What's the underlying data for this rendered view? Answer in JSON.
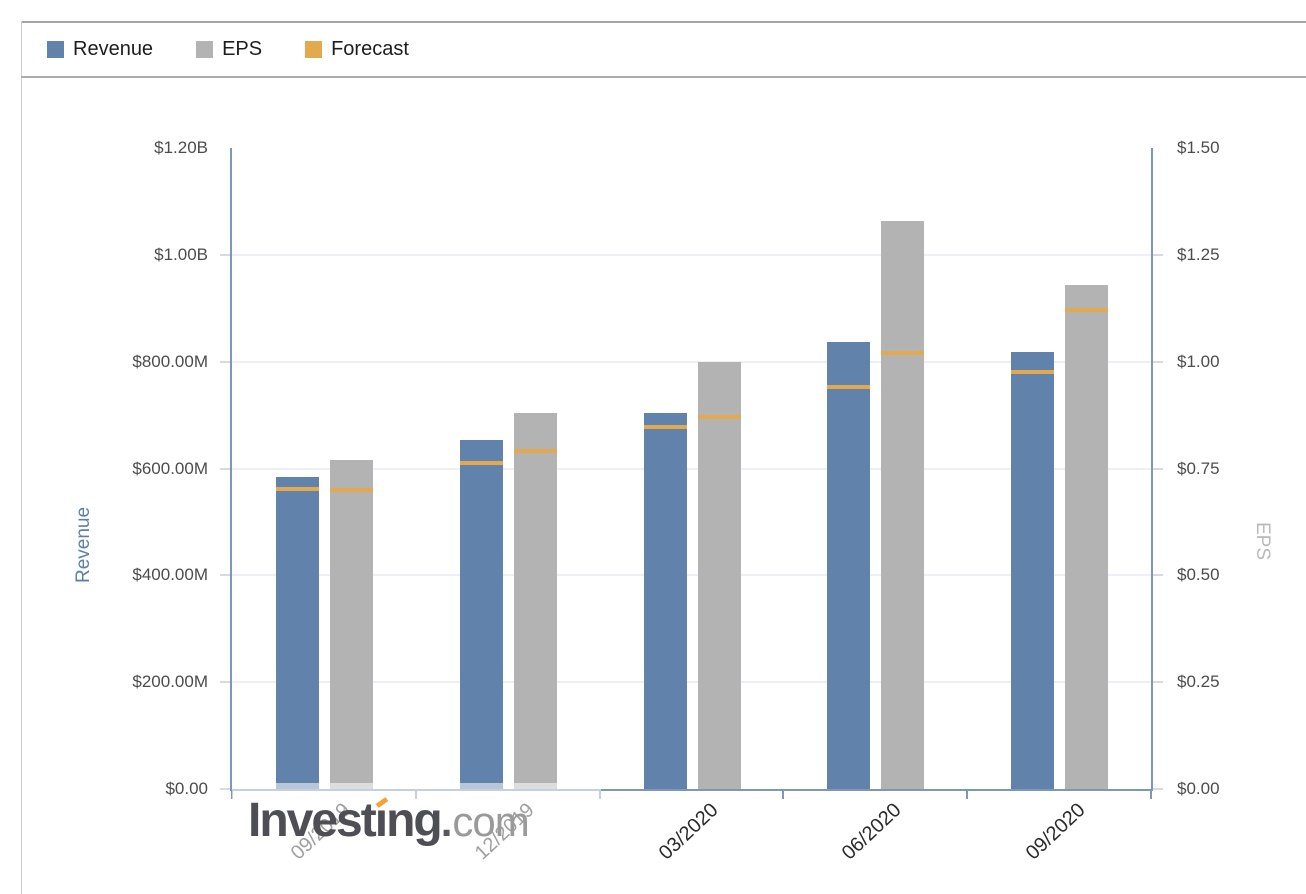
{
  "legend": {
    "items": [
      {
        "label": "Revenue",
        "color": "#6183ab"
      },
      {
        "label": "EPS",
        "color": "#b3b3b3"
      },
      {
        "label": "Forecast",
        "color": "#e3a94e"
      }
    ]
  },
  "chart_data": {
    "type": "bar",
    "title": "",
    "categories": [
      "09/2019",
      "12/2019",
      "03/2020",
      "06/2020",
      "09/2020"
    ],
    "series": [
      {
        "name": "Revenue",
        "axis": "left",
        "color": "#6183ab",
        "values": [
          584000000,
          653000000,
          703000000,
          837000000,
          818000000
        ]
      },
      {
        "name": "EPS",
        "axis": "right",
        "color": "#b3b3b3",
        "values": [
          0.77,
          0.88,
          1.0,
          1.33,
          1.18
        ]
      },
      {
        "name": "Revenue Forecast",
        "axis": "left",
        "color": "#e3a94e",
        "values": [
          561000000,
          610000000,
          678000000,
          753000000,
          781000000
        ]
      },
      {
        "name": "EPS Forecast",
        "axis": "right",
        "color": "#e3a94e",
        "values": [
          0.7,
          0.79,
          0.87,
          1.02,
          1.12
        ]
      }
    ],
    "left_axis": {
      "title": "Revenue",
      "range": [
        0,
        1200000000
      ],
      "ticks": [
        "$1.20B",
        "$1.00B",
        "$800.00M",
        "$600.00M",
        "$400.00M",
        "$200.00M",
        "$0.00"
      ]
    },
    "right_axis": {
      "title": "EPS",
      "range": [
        0,
        1.5
      ],
      "ticks": [
        "$1.50",
        "$1.25",
        "$1.00",
        "$0.75",
        "$0.50",
        "$0.25",
        "$0.00"
      ]
    },
    "legend_position": "top",
    "grid": true,
    "colors": {
      "revenue": "#6183ab",
      "eps": "#b3b3b3",
      "forecast": "#e3a94e"
    }
  },
  "watermark": {
    "part1": "Invest",
    "accent_char": "ı",
    "part2": "ng",
    "suffix_dot": ".",
    "suffix": "com"
  }
}
